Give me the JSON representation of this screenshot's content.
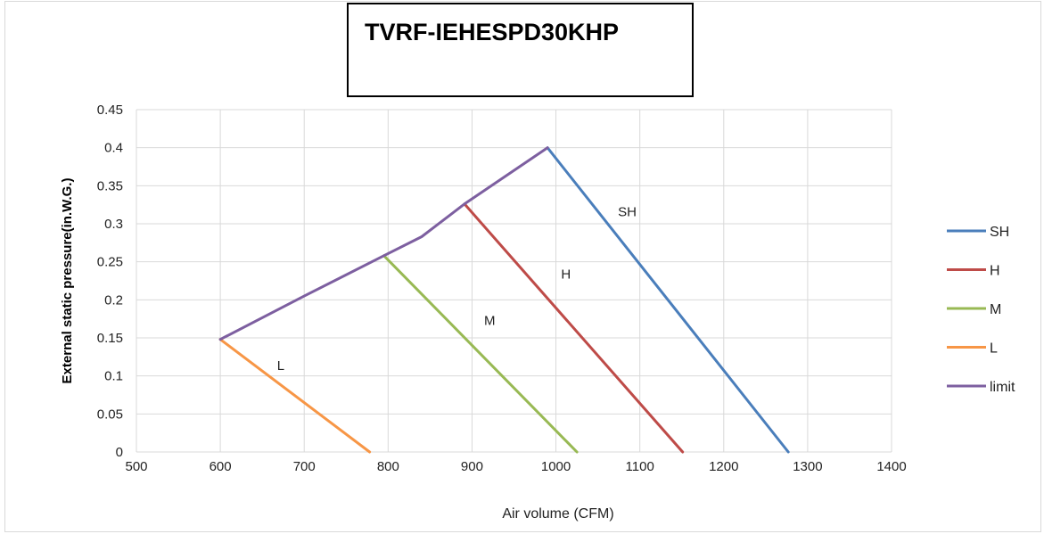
{
  "chart_data": {
    "type": "line",
    "title": "TVRF-IEHESPD30KHP",
    "xlabel": "Air  volume (CFM)",
    "ylabel": "External static pressure(in.W.G.)",
    "xlim": [
      500,
      1400
    ],
    "ylim": [
      0,
      0.45
    ],
    "x_ticks": [
      "500",
      "600",
      "700",
      "800",
      "900",
      "1000",
      "1100",
      "1200",
      "1300",
      "1400"
    ],
    "y_ticks": [
      "0",
      "0.05",
      "0.1",
      "0.15",
      "0.2",
      "0.25",
      "0.3",
      "0.35",
      "0.4",
      "0.45"
    ],
    "grid": "on",
    "legend_position": "right",
    "series": [
      {
        "name": "SH",
        "color": "#4a7ebb",
        "points": [
          [
            990,
            0.4
          ],
          [
            1277,
            0
          ]
        ]
      },
      {
        "name": "H",
        "color": "#be4b48",
        "points": [
          [
            891,
            0.326
          ],
          [
            1151,
            0
          ]
        ]
      },
      {
        "name": "M",
        "color": "#98b954",
        "points": [
          [
            795,
            0.258
          ],
          [
            1025,
            0
          ]
        ]
      },
      {
        "name": "L",
        "color": "#f79646",
        "points": [
          [
            600,
            0.148
          ],
          [
            778,
            0
          ]
        ]
      },
      {
        "name": "limit",
        "color": "#7d5fa0",
        "points": [
          [
            600,
            0.148
          ],
          [
            700,
            0.205
          ],
          [
            795,
            0.258
          ],
          [
            840,
            0.283
          ],
          [
            891,
            0.326
          ],
          [
            990,
            0.4
          ]
        ]
      }
    ],
    "annotations": [
      {
        "text": "SH",
        "x": 1085,
        "y": 0.31
      },
      {
        "text": "H",
        "x": 1012,
        "y": 0.228
      },
      {
        "text": "M",
        "x": 921,
        "y": 0.167
      },
      {
        "text": "L",
        "x": 672,
        "y": 0.108
      }
    ]
  }
}
